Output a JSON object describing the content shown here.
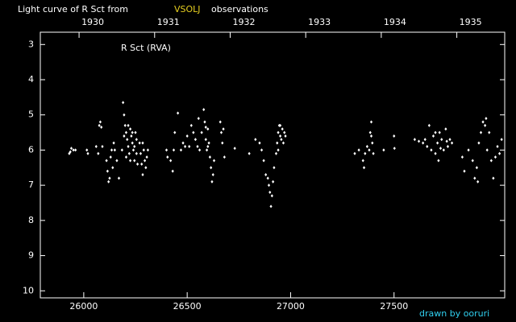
{
  "chart_data": {
    "type": "scatter",
    "title": "Light curve of R Sct from",
    "title_source": "VSOLJ",
    "title_end": "observations",
    "credit": "drawn by ooruri",
    "xlim": [
      25790,
      28035
    ],
    "xticks": [
      26000,
      26500,
      27000,
      27500
    ],
    "x2lim": [
      1929.487,
      1935.634
    ],
    "x2ticks": [
      1930,
      1931,
      1932,
      1933,
      1934,
      1935
    ],
    "ylim": [
      10.2,
      2.65
    ],
    "yticks": [
      3,
      4,
      5,
      6,
      7,
      8,
      9,
      10
    ],
    "series": [
      {
        "name": "R Sct (RVA)",
        "color": "#ffffff",
        "x": [
          25930,
          25935,
          25940,
          25950,
          25960,
          26015,
          26020,
          26060,
          26070,
          26075,
          26080,
          26085,
          26090,
          26110,
          26115,
          26120,
          26125,
          26130,
          26135,
          26140,
          26145,
          26150,
          26160,
          26170,
          26185,
          26190,
          26195,
          26195,
          26200,
          26205,
          26205,
          26210,
          26215,
          26215,
          26220,
          26225,
          26225,
          26230,
          26235,
          26235,
          26240,
          26245,
          26245,
          26250,
          26255,
          26255,
          26260,
          26270,
          26275,
          26280,
          26285,
          26285,
          26290,
          26295,
          26300,
          26305,
          26310,
          26400,
          26405,
          26420,
          26430,
          26435,
          26440,
          26455,
          26470,
          26480,
          26490,
          26500,
          26510,
          26520,
          26530,
          26540,
          26550,
          26555,
          26560,
          26570,
          26580,
          26585,
          26590,
          26590,
          26595,
          26600,
          26600,
          26605,
          26610,
          26615,
          26620,
          26625,
          26630,
          26660,
          26665,
          26670,
          26675,
          26680,
          26730,
          26800,
          26830,
          26850,
          26860,
          26870,
          26880,
          26890,
          26895,
          26900,
          26905,
          26910,
          26915,
          26920,
          26930,
          26935,
          26940,
          26940,
          26945,
          26950,
          26950,
          26955,
          26960,
          26965,
          26970,
          26975,
          27310,
          27330,
          27350,
          27355,
          27360,
          27370,
          27380,
          27385,
          27390,
          27390,
          27395,
          27400,
          27450,
          27500,
          27502,
          27600,
          27620,
          27640,
          27650,
          27660,
          27670,
          27680,
          27690,
          27700,
          27700,
          27710,
          27715,
          27720,
          27725,
          27730,
          27740,
          27750,
          27755,
          27760,
          27770,
          27780,
          27830,
          27840,
          27860,
          27880,
          27890,
          27900,
          27905,
          27910,
          27920,
          27930,
          27940,
          27945,
          27950,
          27960,
          27970,
          27980,
          27990,
          28000,
          28010,
          28020
        ],
        "values": [
          6.1,
          6.05,
          5.95,
          6.0,
          6.0,
          6.0,
          6.1,
          5.9,
          6.1,
          5.3,
          5.2,
          5.35,
          5.9,
          6.3,
          6.6,
          6.9,
          6.8,
          6.2,
          6.0,
          6.5,
          5.8,
          6.0,
          6.3,
          6.8,
          6.0,
          4.65,
          5.0,
          5.6,
          5.3,
          5.5,
          6.2,
          5.7,
          5.9,
          5.3,
          6.1,
          5.4,
          6.3,
          5.6,
          5.8,
          5.5,
          6.0,
          6.3,
          5.9,
          5.5,
          5.7,
          6.1,
          6.4,
          5.8,
          6.1,
          6.4,
          6.7,
          5.8,
          6.0,
          6.3,
          6.5,
          6.2,
          6.0,
          6.0,
          6.2,
          6.3,
          6.6,
          6.0,
          5.5,
          4.95,
          6.0,
          5.8,
          5.9,
          5.6,
          5.9,
          5.3,
          5.5,
          5.7,
          5.9,
          5.1,
          6.0,
          5.5,
          4.85,
          5.2,
          5.7,
          5.35,
          6.0,
          5.4,
          5.9,
          5.8,
          6.2,
          6.5,
          6.9,
          6.7,
          6.3,
          5.2,
          5.5,
          5.8,
          5.4,
          6.2,
          5.95,
          6.1,
          5.7,
          5.8,
          6.0,
          6.3,
          6.7,
          6.8,
          7.0,
          7.2,
          7.6,
          7.3,
          6.9,
          6.5,
          6.1,
          5.8,
          5.5,
          6.0,
          5.3,
          5.6,
          5.3,
          5.7,
          5.4,
          5.8,
          5.5,
          5.6,
          6.1,
          6.0,
          6.3,
          6.5,
          6.1,
          5.9,
          6.0,
          5.5,
          5.2,
          5.6,
          5.8,
          6.1,
          6.0,
          5.6,
          5.95,
          5.7,
          5.75,
          5.8,
          5.7,
          5.9,
          5.3,
          6.0,
          5.6,
          6.1,
          5.5,
          5.8,
          6.3,
          5.5,
          5.95,
          5.7,
          6.0,
          5.4,
          5.75,
          5.9,
          5.7,
          5.8,
          6.2,
          6.6,
          6.0,
          6.3,
          6.8,
          6.5,
          6.9,
          5.8,
          5.5,
          5.2,
          5.3,
          5.1,
          6.0,
          5.5,
          6.3,
          6.8,
          6.2,
          5.9,
          6.1,
          5.7
        ]
      }
    ]
  }
}
